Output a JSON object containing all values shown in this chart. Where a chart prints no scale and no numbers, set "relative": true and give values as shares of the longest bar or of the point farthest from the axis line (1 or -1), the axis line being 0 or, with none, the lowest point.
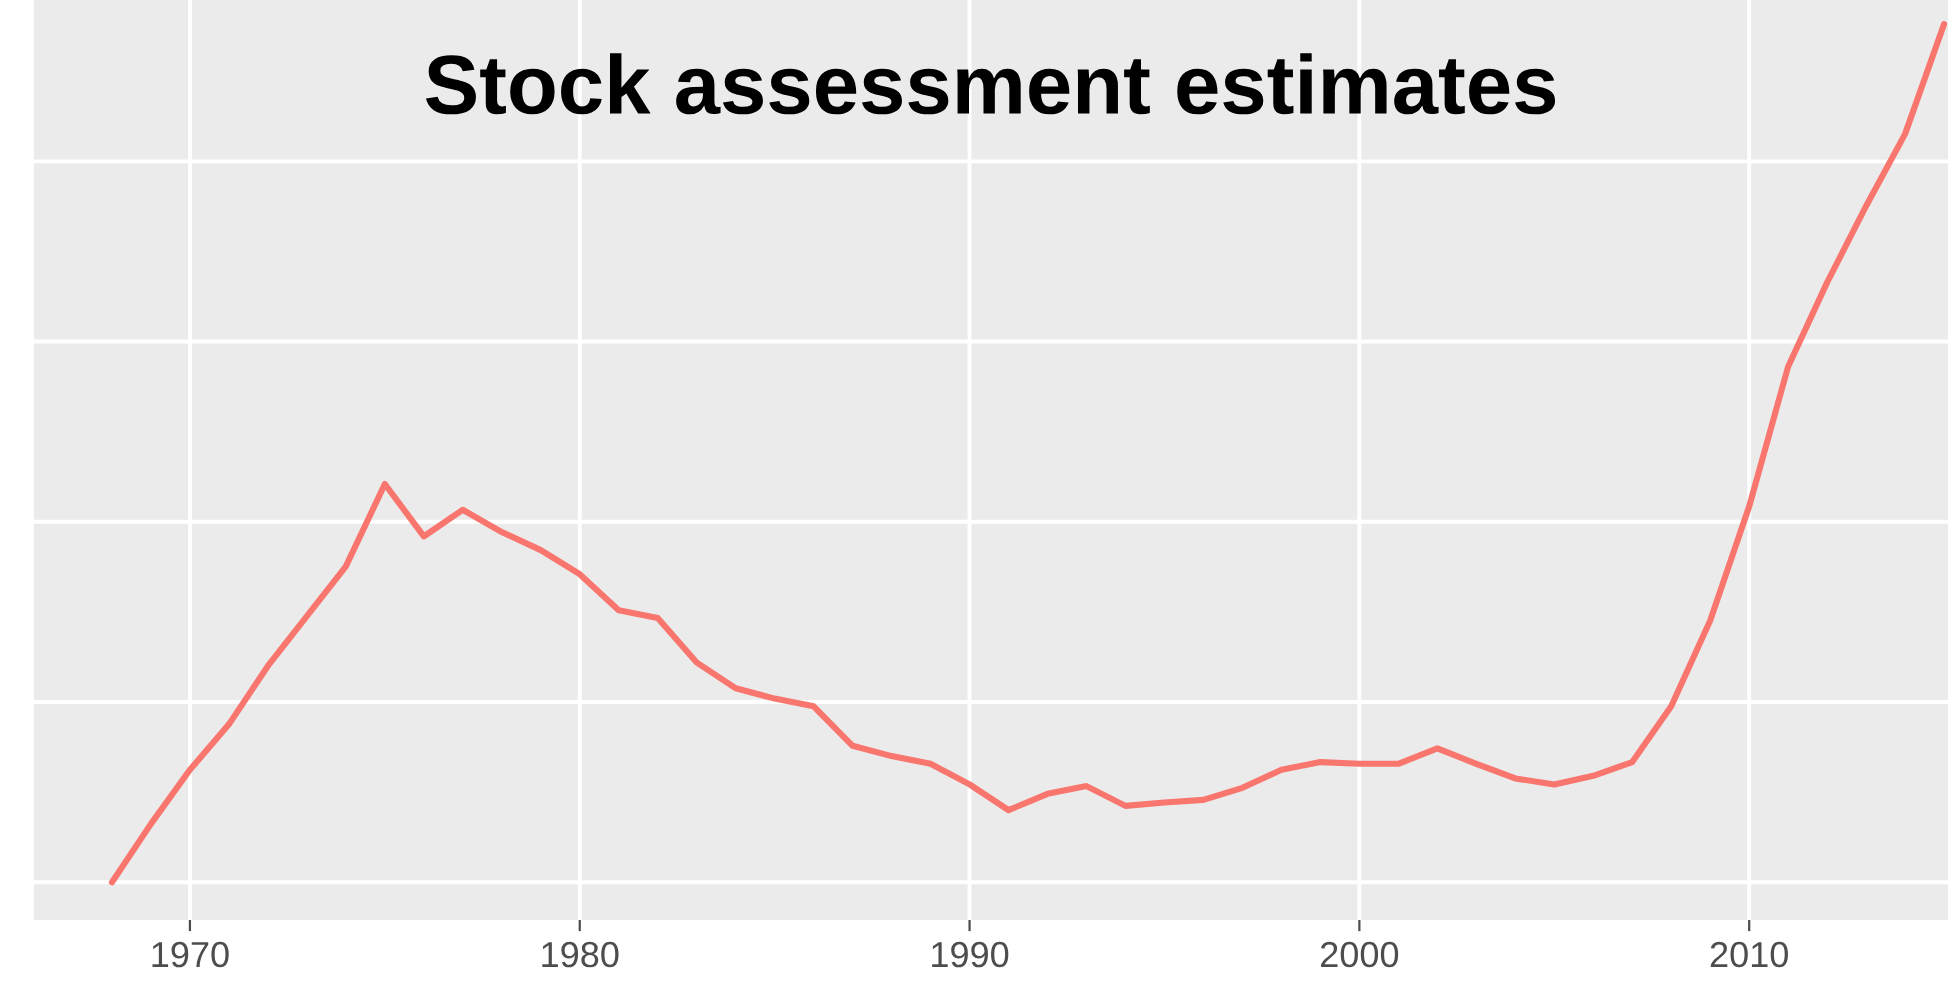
{
  "chart_data": {
    "type": "line",
    "title": "Stock assessment estimates",
    "relative": true,
    "x": [
      1968,
      1969,
      1970,
      1971,
      1972,
      1973,
      1974,
      1975,
      1976,
      1977,
      1978,
      1979,
      1980,
      1981,
      1982,
      1983,
      1984,
      1985,
      1986,
      1987,
      1988,
      1989,
      1990,
      1991,
      1992,
      1993,
      1994,
      1995,
      1996,
      1997,
      1998,
      1999,
      2000,
      2001,
      2002,
      2003,
      2004,
      2005,
      2006,
      2007,
      2008,
      2009,
      2010,
      2011,
      2012,
      2013,
      2014,
      2015
    ],
    "series": [
      {
        "color": "#f8766d",
        "values": [
          0,
          0.068,
          0.131,
          0.184,
          0.252,
          0.31,
          0.368,
          0.464,
          0.403,
          0.434,
          0.408,
          0.387,
          0.359,
          0.317,
          0.308,
          0.256,
          0.226,
          0.214,
          0.205,
          0.159,
          0.147,
          0.138,
          0.114,
          0.084,
          0.103,
          0.112,
          0.089,
          0.093,
          0.096,
          0.11,
          0.131,
          0.14,
          0.138,
          0.138,
          0.156,
          0.138,
          0.121,
          0.114,
          0.124,
          0.14,
          0.205,
          0.305,
          0.438,
          0.601,
          0.699,
          0.788,
          0.872,
          1
        ]
      }
    ],
    "xlim": [
      1966,
      2015.1
    ],
    "xticks": [
      1970,
      1980,
      1990,
      2000,
      2010
    ],
    "grid": true,
    "tick_labels": "x"
  }
}
